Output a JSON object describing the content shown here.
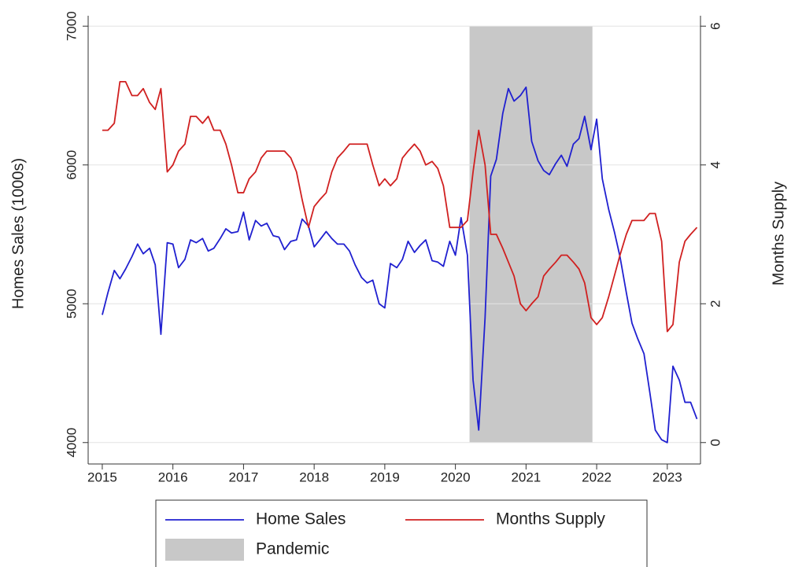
{
  "chart_data": {
    "type": "line",
    "y_label": "Homes Sales (1000s)",
    "y2_label": "Months Supply",
    "x": [
      2015.0,
      2015.08,
      2015.17,
      2015.25,
      2015.33,
      2015.42,
      2015.5,
      2015.58,
      2015.67,
      2015.75,
      2015.83,
      2015.92,
      2016.0,
      2016.08,
      2016.17,
      2016.25,
      2016.33,
      2016.42,
      2016.5,
      2016.58,
      2016.67,
      2016.75,
      2016.83,
      2016.92,
      2017.0,
      2017.08,
      2017.17,
      2017.25,
      2017.33,
      2017.42,
      2017.5,
      2017.58,
      2017.67,
      2017.75,
      2017.83,
      2017.92,
      2018.0,
      2018.08,
      2018.17,
      2018.25,
      2018.33,
      2018.42,
      2018.5,
      2018.58,
      2018.67,
      2018.75,
      2018.83,
      2018.92,
      2019.0,
      2019.08,
      2019.17,
      2019.25,
      2019.33,
      2019.42,
      2019.5,
      2019.58,
      2019.67,
      2019.75,
      2019.83,
      2019.92,
      2020.0,
      2020.08,
      2020.17,
      2020.25,
      2020.33,
      2020.42,
      2020.5,
      2020.58,
      2020.67,
      2020.75,
      2020.83,
      2020.92,
      2021.0,
      2021.08,
      2021.17,
      2021.25,
      2021.33,
      2021.42,
      2021.5,
      2021.58,
      2021.67,
      2021.75,
      2021.83,
      2021.92,
      2022.0,
      2022.08,
      2022.17,
      2022.25,
      2022.33,
      2022.42,
      2022.5,
      2022.58,
      2022.67,
      2022.75,
      2022.83,
      2022.92,
      2023.0,
      2023.08,
      2023.17,
      2023.25,
      2023.33,
      2023.42
    ],
    "series": [
      {
        "name": "Home Sales",
        "color": "#2020d0",
        "axis": "y",
        "values": [
          4920,
          5080,
          5240,
          5180,
          5250,
          5340,
          5430,
          5360,
          5400,
          5280,
          4780,
          5440,
          5430,
          5260,
          5320,
          5460,
          5440,
          5470,
          5380,
          5400,
          5470,
          5540,
          5510,
          5520,
          5660,
          5460,
          5600,
          5560,
          5580,
          5490,
          5480,
          5390,
          5450,
          5460,
          5610,
          5560,
          5410,
          5460,
          5520,
          5470,
          5430,
          5430,
          5380,
          5280,
          5190,
          5150,
          5170,
          5000,
          4970,
          5290,
          5260,
          5320,
          5450,
          5370,
          5420,
          5460,
          5310,
          5300,
          5270,
          5450,
          5350,
          5620,
          5350,
          4450,
          4090,
          4900,
          5920,
          6040,
          6370,
          6550,
          6460,
          6500,
          6560,
          6170,
          6030,
          5960,
          5930,
          6010,
          6070,
          5990,
          6150,
          6190,
          6350,
          6110,
          6330,
          5900,
          5680,
          5520,
          5340,
          5080,
          4860,
          4750,
          4640,
          4370,
          4090,
          4020,
          4000,
          4550,
          4450,
          4290,
          4290,
          4170
        ]
      },
      {
        "name": "Months Supply",
        "color": "#d02020",
        "axis": "y2",
        "values": [
          4.5,
          4.5,
          4.6,
          5.2,
          5.2,
          5.0,
          5.0,
          5.1,
          4.9,
          4.8,
          5.1,
          3.9,
          4.0,
          4.2,
          4.3,
          4.7,
          4.7,
          4.6,
          4.7,
          4.5,
          4.5,
          4.3,
          4.0,
          3.6,
          3.6,
          3.8,
          3.9,
          4.1,
          4.2,
          4.2,
          4.2,
          4.2,
          4.1,
          3.9,
          3.5,
          3.1,
          3.4,
          3.5,
          3.6,
          3.9,
          4.1,
          4.2,
          4.3,
          4.3,
          4.3,
          4.3,
          4.0,
          3.7,
          3.8,
          3.7,
          3.8,
          4.1,
          4.2,
          4.3,
          4.2,
          4.0,
          4.05,
          3.95,
          3.7,
          3.1,
          3.1,
          3.1,
          3.2,
          3.9,
          4.5,
          4.0,
          3.0,
          3.0,
          2.8,
          2.6,
          2.4,
          2.0,
          1.9,
          2.0,
          2.1,
          2.4,
          2.5,
          2.6,
          2.7,
          2.7,
          2.6,
          2.5,
          2.3,
          1.8,
          1.7,
          1.8,
          2.1,
          2.4,
          2.7,
          3.0,
          3.2,
          3.2,
          3.2,
          3.3,
          3.3,
          2.9,
          1.6,
          1.7,
          2.6,
          2.9,
          3.0,
          3.1
        ]
      }
    ],
    "shaded_regions": [
      {
        "name": "Pandemic",
        "start": 2020.2,
        "end": 2021.94,
        "color": "#c8c8c8"
      }
    ],
    "xlim": [
      2014.8,
      2023.47
    ],
    "xticks": [
      2015,
      2016,
      2017,
      2018,
      2019,
      2020,
      2021,
      2022,
      2023
    ],
    "ylim": [
      3925,
      7075
    ],
    "yticks": [
      4000,
      5000,
      6000,
      7000
    ],
    "y2lim": [
      -0.15,
      6.15
    ],
    "y2ticks": [
      0,
      2,
      4,
      6
    ],
    "grid": true,
    "legend": "bottom"
  }
}
